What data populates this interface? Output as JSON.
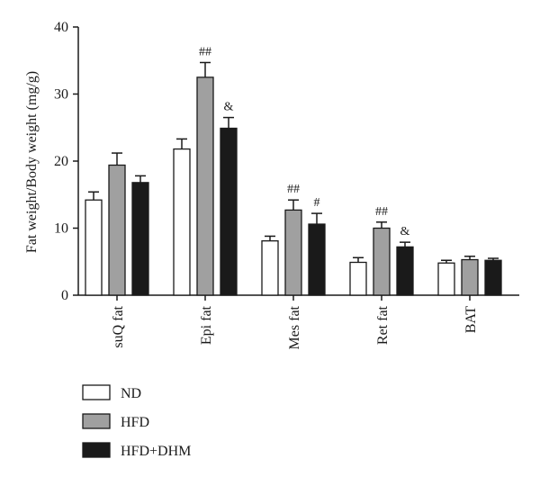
{
  "chart_data": {
    "type": "bar",
    "ylabel": "Fat weight/Body weight (mg/g)",
    "xlabel": "",
    "ylim": [
      0,
      40
    ],
    "yticks": [
      0,
      10,
      20,
      30,
      40
    ],
    "categories": [
      "suQ fat",
      "Epi fat",
      "Mes fat",
      "Ret fat",
      "BAT"
    ],
    "series": [
      {
        "name": "ND",
        "color": "#ffffff",
        "values": [
          14.2,
          21.8,
          8.1,
          4.9,
          4.8
        ],
        "errors": [
          1.2,
          1.5,
          0.7,
          0.7,
          0.4
        ]
      },
      {
        "name": "HFD",
        "color": "#a0a0a0",
        "values": [
          19.4,
          32.5,
          12.7,
          10.0,
          5.3
        ],
        "errors": [
          1.8,
          2.2,
          1.5,
          0.9,
          0.5
        ]
      },
      {
        "name": "HFD+DHM",
        "color": "#1a1a1a",
        "values": [
          16.8,
          24.9,
          10.6,
          7.2,
          5.2
        ],
        "errors": [
          1.0,
          1.6,
          1.6,
          0.7,
          0.3
        ]
      }
    ],
    "annotations": [
      {
        "category": 1,
        "series": 1,
        "text": "##"
      },
      {
        "category": 1,
        "series": 2,
        "text": "&"
      },
      {
        "category": 2,
        "series": 1,
        "text": "##"
      },
      {
        "category": 2,
        "series": 2,
        "text": "#"
      },
      {
        "category": 3,
        "series": 1,
        "text": "##"
      },
      {
        "category": 3,
        "series": 2,
        "text": "&"
      }
    ],
    "legend_position": "bottom-left",
    "grid": false
  }
}
